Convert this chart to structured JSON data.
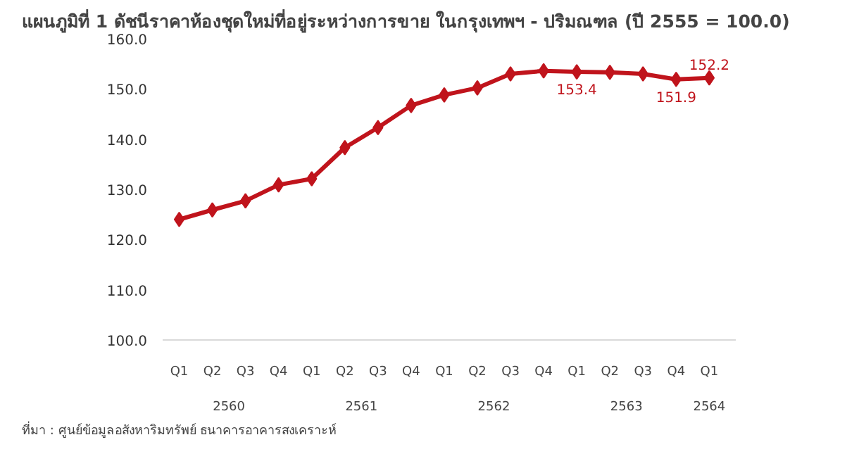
{
  "chart_data": {
    "type": "line",
    "title": "แผนภูมิที่ 1 ดัชนีราคาห้องชุดใหม่ที่อยู่ระหว่างการขาย ในกรุงเทพฯ - ปริมณฑล (ปี 2555 = 100.0)",
    "categories": [
      "Q1",
      "Q2",
      "Q3",
      "Q4",
      "Q1",
      "Q2",
      "Q3",
      "Q4",
      "Q1",
      "Q2",
      "Q3",
      "Q4",
      "Q1",
      "Q2",
      "Q3",
      "Q4",
      "Q1"
    ],
    "series": [
      {
        "color": "#c0141c",
        "values": [
          124.0,
          125.9,
          127.7,
          130.9,
          132.1,
          138.3,
          142.3,
          146.7,
          148.8,
          150.2,
          153.0,
          153.6,
          153.4,
          153.3,
          153.0,
          151.9,
          152.2
        ],
        "value_labels": [
          null,
          null,
          null,
          null,
          null,
          null,
          null,
          null,
          null,
          null,
          null,
          null,
          "153.4",
          null,
          null,
          "151.9",
          "152.2"
        ]
      }
    ],
    "ylim": [
      100,
      160
    ],
    "yticks": [
      {
        "value": 100,
        "label": "100.0"
      },
      {
        "value": 110,
        "label": "110.0"
      },
      {
        "value": 120,
        "label": "120.0"
      },
      {
        "value": 130,
        "label": "130.0"
      },
      {
        "value": 140,
        "label": "140.0"
      },
      {
        "value": 150,
        "label": "150.0"
      },
      {
        "value": 160,
        "label": "160.0"
      }
    ],
    "grid": false,
    "marker": "diamond",
    "line_style": "solid",
    "annotations": [
      "2560",
      "2561",
      "2562",
      "2563",
      "2564",
      "ที่มา : ศูนย์ข้อมูลอสังหาริมทรัพย์ ธนาคารอาคารสงเคราะห์"
    ]
  }
}
